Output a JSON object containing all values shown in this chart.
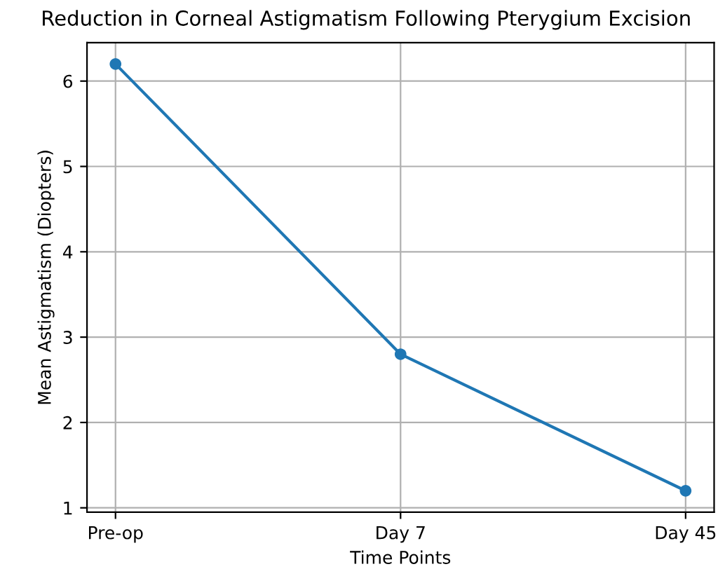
{
  "chart_data": {
    "type": "line",
    "title": "Reduction in Corneal Astigmatism Following Pterygium Excision",
    "xlabel": "Time Points",
    "ylabel": "Mean Astigmatism (Diopters)",
    "categories": [
      "Pre-op",
      "Day 7",
      "Day 45"
    ],
    "series": [
      {
        "color": "#1f77b4",
        "values": [
          6.2,
          2.8,
          1.2
        ]
      }
    ],
    "ylim": [
      0.95,
      6.45
    ],
    "yticks": [
      1,
      2,
      3,
      4,
      5,
      6
    ],
    "grid": true,
    "marker": "circle",
    "line_style": "solid"
  }
}
